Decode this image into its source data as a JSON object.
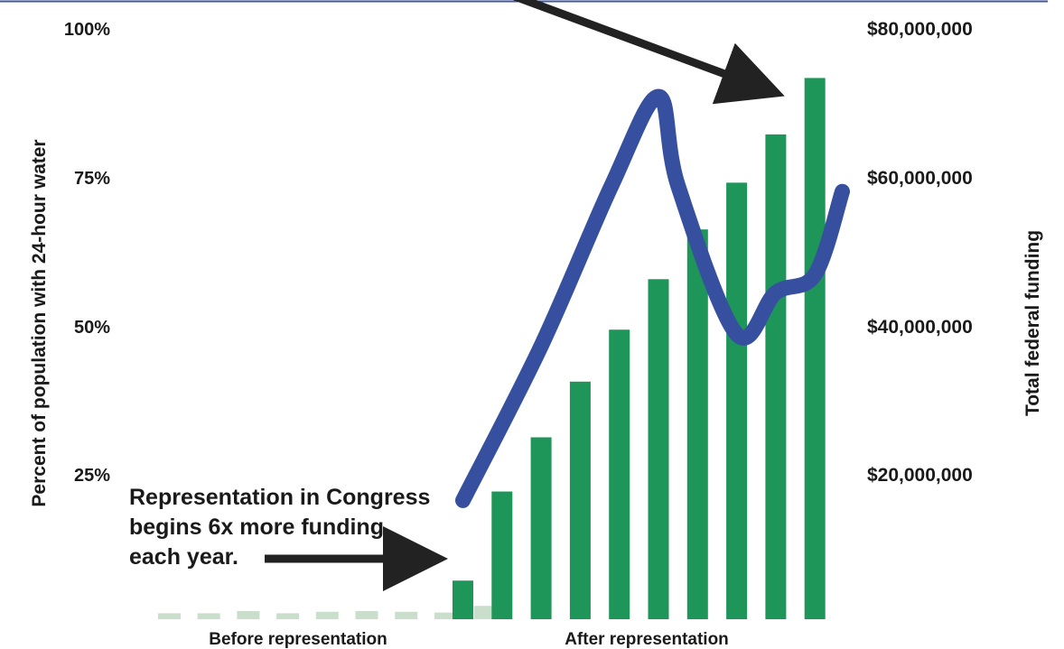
{
  "chart_data": {
    "type": "bar",
    "title": "",
    "ylabel_left": "Percent of population with 24-hour water",
    "ylabel_right": "Total federal funding",
    "left_ticks": [
      "25%",
      "50%",
      "75%",
      "100%"
    ],
    "left_tick_values": [
      25,
      50,
      75,
      100
    ],
    "right_ticks": [
      "$20,000,000",
      "$40,000,000",
      "$60,000,000",
      "$80,000,000"
    ],
    "right_tick_values": [
      20000000,
      40000000,
      60000000,
      80000000
    ],
    "left_ylim": [
      0,
      100
    ],
    "right_ylim": [
      0,
      80000000
    ],
    "grid": false,
    "period_labels": [
      "Before representation",
      "After representation"
    ],
    "before_funding": [
      800000,
      800000,
      1100000,
      800000,
      1000000,
      1100000,
      1000000,
      900000,
      1800000
    ],
    "after_funding": [
      5200000,
      17200000,
      24500000,
      32000000,
      39000000,
      45800000,
      52500000,
      58800000,
      65300000,
      72900000
    ],
    "water_line": {
      "x_after_index": [
        0,
        2,
        3.8,
        5.0,
        5.5,
        7.0,
        8.0,
        9.0,
        9.7
      ],
      "percent": [
        20,
        46,
        73,
        88,
        73,
        48,
        55,
        58,
        72
      ]
    },
    "colors": {
      "before_bar": "#c9dfcc",
      "after_bar": "#1f9659",
      "line": "#36509f",
      "arrow": "#222222",
      "top_rule": "#3d56a6"
    },
    "annotation": {
      "lines": [
        "Representation in Congress",
        "begins 6x more funding",
        "each year."
      ]
    }
  }
}
